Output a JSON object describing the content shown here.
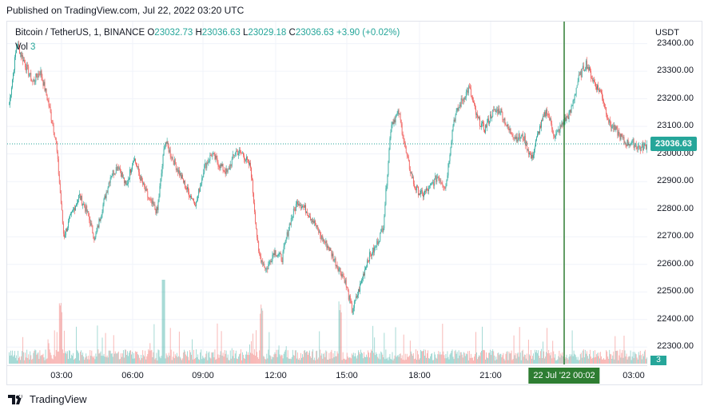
{
  "published": "Published on TradingView.com, Jul 22, 2022 03:20 UTC",
  "legend": {
    "symbol": "Bitcoin / TetherUS, 1, BINANCE",
    "o_label": "O",
    "o_value": "23032.73",
    "h_label": "H",
    "h_value": "23036.63",
    "l_label": "L",
    "l_value": "23029.18",
    "c_label": "C",
    "c_value": "23036.63",
    "change": "+3.90 (+0.02%)",
    "vol_label": "Vol",
    "vol_value": "3"
  },
  "price_axis": {
    "currency": "USDT",
    "ticks": [
      "23400.00",
      "23300.00",
      "23200.00",
      "23100.00",
      "23000.00",
      "22900.00",
      "22800.00",
      "22700.00",
      "22600.00",
      "22500.00",
      "22400.00",
      "22300.00"
    ],
    "last_price": "23036.63",
    "last_volume": "3"
  },
  "time_axis": {
    "ticks": [
      "03:00",
      "06:00",
      "09:00",
      "12:00",
      "15:00",
      "18:00",
      "21:00",
      "03:00"
    ],
    "crosshair_label": "22 Jul '22   00:02"
  },
  "colors": {
    "up": "#26a69a",
    "down": "#ef5350",
    "crosshair": "#2e7d32"
  },
  "footer": {
    "brand": "TradingView",
    "logo_icon": "tradingview-logo-icon"
  },
  "chart_data": {
    "type": "candlestick",
    "interval": "1",
    "ylim": [
      22240,
      23480
    ],
    "close_path": [
      23180,
      23400,
      23330,
      23260,
      23300,
      23190,
      23050,
      22700,
      22780,
      22850,
      22790,
      22690,
      22810,
      22920,
      22960,
      22880,
      22990,
      22900,
      22830,
      22790,
      23050,
      22980,
      22920,
      22860,
      22820,
      22950,
      23000,
      22960,
      22930,
      23010,
      23000,
      22950,
      22640,
      22580,
      22650,
      22620,
      22750,
      22830,
      22800,
      22760,
      22700,
      22660,
      22600,
      22550,
      22430,
      22520,
      22620,
      22660,
      22740,
      23110,
      23150,
      22990,
      22880,
      22850,
      22880,
      22920,
      22880,
      23120,
      23190,
      23240,
      23130,
      23090,
      23150,
      23160,
      23090,
      23060,
      23060,
      22980,
      23090,
      23160,
      23060,
      23110,
      23150,
      23270,
      23330,
      23260,
      23220,
      23110,
      23080,
      23040,
      23040,
      23020,
      23036.63
    ],
    "volume_note": "volume histogram beneath price; spikes near 12:00 and 14:30"
  }
}
